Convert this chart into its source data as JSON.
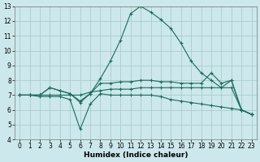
{
  "xlabel": "Humidex (Indice chaleur)",
  "bg_color": "#cce8ec",
  "grid_color": "#aacccc",
  "line_color": "#1a6b5a",
  "xlim": [
    -0.5,
    23.5
  ],
  "ylim": [
    4,
    13
  ],
  "xticks": [
    0,
    1,
    2,
    3,
    4,
    5,
    6,
    7,
    8,
    9,
    10,
    11,
    12,
    13,
    14,
    15,
    16,
    17,
    18,
    19,
    20,
    21,
    22,
    23
  ],
  "yticks": [
    4,
    5,
    6,
    7,
    8,
    9,
    10,
    11,
    12,
    13
  ],
  "lines": [
    {
      "x": [
        0,
        1,
        2,
        3,
        4,
        5,
        6,
        7,
        8,
        9,
        10,
        11,
        12,
        13,
        14,
        15,
        16,
        17,
        18,
        19,
        20,
        21,
        22,
        23
      ],
      "y": [
        7.0,
        7.0,
        7.0,
        7.5,
        7.3,
        7.1,
        6.5,
        7.1,
        8.1,
        9.3,
        10.7,
        12.5,
        13.0,
        12.6,
        12.1,
        11.5,
        10.5,
        9.3,
        8.5,
        8.0,
        7.5,
        8.0,
        6.0,
        5.7
      ]
    },
    {
      "x": [
        0,
        1,
        2,
        3,
        4,
        5,
        6,
        7,
        8,
        9,
        10,
        11,
        12,
        13,
        14,
        15,
        16,
        17,
        18,
        19,
        20,
        21,
        22,
        23
      ],
      "y": [
        7.0,
        7.0,
        7.0,
        7.5,
        7.3,
        7.1,
        6.6,
        7.1,
        7.8,
        7.8,
        7.9,
        7.9,
        8.0,
        8.0,
        7.9,
        7.9,
        7.8,
        7.8,
        7.8,
        8.5,
        7.8,
        8.0,
        6.0,
        5.7
      ]
    },
    {
      "x": [
        0,
        1,
        2,
        3,
        4,
        5,
        6,
        7,
        8,
        9,
        10,
        11,
        12,
        13,
        14,
        15,
        16,
        17,
        18,
        19,
        20,
        21,
        22,
        23
      ],
      "y": [
        7.0,
        7.0,
        7.0,
        7.0,
        7.0,
        7.0,
        7.0,
        7.2,
        7.3,
        7.4,
        7.4,
        7.4,
        7.5,
        7.5,
        7.5,
        7.5,
        7.5,
        7.5,
        7.5,
        7.5,
        7.5,
        7.5,
        6.0,
        5.7
      ]
    },
    {
      "x": [
        0,
        1,
        2,
        3,
        4,
        5,
        6,
        7,
        8,
        9,
        10,
        11,
        12,
        13,
        14,
        15,
        16,
        17,
        18,
        19,
        20,
        21,
        22,
        23
      ],
      "y": [
        7.0,
        7.0,
        6.9,
        6.9,
        6.9,
        6.7,
        4.7,
        6.4,
        7.1,
        7.0,
        7.0,
        7.0,
        7.0,
        7.0,
        6.9,
        6.7,
        6.6,
        6.5,
        6.4,
        6.3,
        6.2,
        6.1,
        6.0,
        5.7
      ]
    }
  ]
}
